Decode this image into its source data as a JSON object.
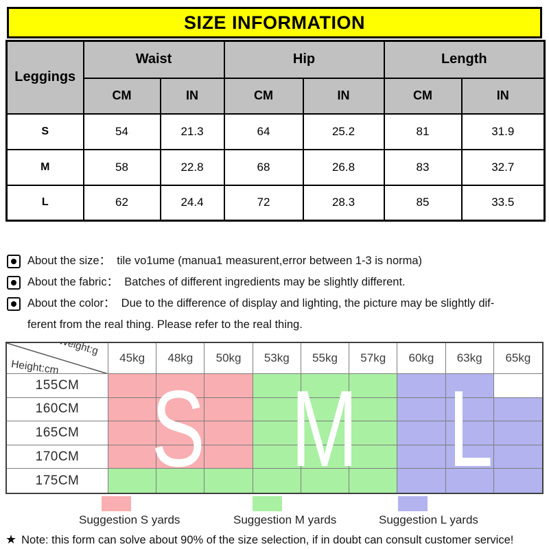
{
  "title": "SIZE INFORMATION",
  "colors": {
    "title_bg": "#ffff00",
    "header_gray": "#c1c1c1",
    "size_s": "#f9aeb1",
    "size_m": "#a9f0a3",
    "size_l": "#b3b3ef"
  },
  "size_table": {
    "product_label": "Leggings",
    "groups": [
      "Waist",
      "Hip",
      "Length"
    ],
    "units": [
      "CM",
      "IN",
      "CM",
      "IN",
      "CM",
      "IN"
    ],
    "rows": [
      {
        "size": "S",
        "values": [
          "54",
          "21.3",
          "64",
          "25.2",
          "81",
          "31.9"
        ]
      },
      {
        "size": "M",
        "values": [
          "58",
          "22.8",
          "68",
          "26.8",
          "83",
          "32.7"
        ]
      },
      {
        "size": "L",
        "values": [
          "62",
          "24.4",
          "72",
          "28.3",
          "85",
          "33.5"
        ]
      }
    ]
  },
  "notes": [
    "About the size：  tile vo1ume (manua1 measurent,error between 1-3 is norma)",
    "About the fabric：  Batches of different ingredients may be slightly different.",
    "About the color：  Due to the difference of display and lighting, the picture may be slightly dif-\nferent from the real thing. Please refer to the real thing."
  ],
  "suggestion_table": {
    "corner_top": "Weight:g",
    "corner_bottom": "Height:cm",
    "weights": [
      "45kg",
      "48kg",
      "50kg",
      "53kg",
      "55kg",
      "57kg",
      "60kg",
      "63kg",
      "65kg"
    ],
    "heights": [
      "155CM",
      "160CM",
      "165CM",
      "170CM",
      "175CM"
    ],
    "cells": [
      [
        "S",
        "S",
        "S",
        "M",
        "M",
        "M",
        "L",
        "L",
        ""
      ],
      [
        "S",
        "S",
        "S",
        "M",
        "M",
        "M",
        "L",
        "L",
        "L"
      ],
      [
        "S",
        "S",
        "S",
        "M",
        "M",
        "M",
        "L",
        "L",
        "L"
      ],
      [
        "S",
        "S",
        "S",
        "M",
        "M",
        "M",
        "L",
        "L",
        "L"
      ],
      [
        "M",
        "M",
        "M",
        "M",
        "M",
        "M",
        "L",
        "L",
        "L"
      ]
    ],
    "overlay_letters": [
      {
        "letter": "S"
      },
      {
        "letter": "M"
      },
      {
        "letter": "L"
      }
    ]
  },
  "legend": [
    {
      "size": "S",
      "label": "Suggestion S yards",
      "color": "#f9aeb1"
    },
    {
      "size": "M",
      "label": "Suggestion M yards",
      "color": "#a9f0a3"
    },
    {
      "size": "L",
      "label": "Suggestion L yards",
      "color": "#b3b3ef"
    }
  ],
  "footnote": {
    "star": "★",
    "text": "Note: this form can solve about 90% of the size selection, if in doubt can consult customer service!"
  }
}
